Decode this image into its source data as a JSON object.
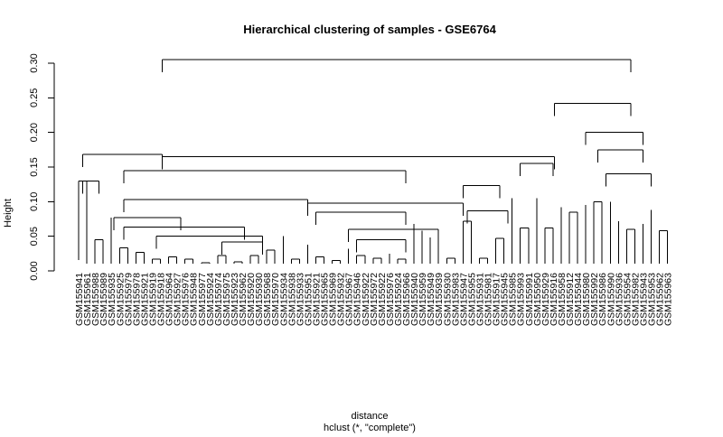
{
  "chart_data": {
    "type": "dendrogram",
    "title": "Hierarchical clustering of samples - GSE6764",
    "ylabel": "Height",
    "xlabel": "distance",
    "sublabel": "hclust (*, \"complete\")",
    "ylim": [
      0,
      0.32
    ],
    "yticks": [
      "0.00",
      "0.05",
      "0.10",
      "0.15",
      "0.20",
      "0.25",
      "0.30"
    ],
    "ytick_values": [
      0,
      0.05,
      0.1,
      0.15,
      0.2,
      0.25,
      0.3
    ],
    "leaves": [
      {
        "label": "GSM155941",
        "height": 0.13
      },
      {
        "label": "GSM155961",
        "height": 0.13
      },
      {
        "label": "GSM155988",
        "height": 0.045
      },
      {
        "label": "GSM155989",
        "height": 0.045
      },
      {
        "label": "GSM155935",
        "height": 0.077
      },
      {
        "label": "GSM155925",
        "height": 0.033
      },
      {
        "label": "GSM155979",
        "height": 0.033
      },
      {
        "label": "GSM155978",
        "height": 0.027
      },
      {
        "label": "GSM155921",
        "height": 0.027
      },
      {
        "label": "GSM155919",
        "height": 0.017
      },
      {
        "label": "GSM155918",
        "height": 0.017
      },
      {
        "label": "GSM155964",
        "height": 0.02
      },
      {
        "label": "GSM155927",
        "height": 0.02
      },
      {
        "label": "GSM155976",
        "height": 0.017
      },
      {
        "label": "GSM155948",
        "height": 0.017
      },
      {
        "label": "GSM155977",
        "height": 0.012
      },
      {
        "label": "GSM155924",
        "height": 0.012
      },
      {
        "label": "GSM155974",
        "height": 0.022
      },
      {
        "label": "GSM155975",
        "height": 0.022
      },
      {
        "label": "GSM155923",
        "height": 0.013
      },
      {
        "label": "GSM155962",
        "height": 0.013
      },
      {
        "label": "GSM155920",
        "height": 0.022
      },
      {
        "label": "GSM155930",
        "height": 0.022
      },
      {
        "label": "GSM155968",
        "height": 0.03
      },
      {
        "label": "GSM155970",
        "height": 0.03
      },
      {
        "label": "GSM155934",
        "height": 0.05
      },
      {
        "label": "GSM155938",
        "height": 0.017
      },
      {
        "label": "GSM155933",
        "height": 0.017
      },
      {
        "label": "GSM155951",
        "height": 0.038
      },
      {
        "label": "GSM155921",
        "height": 0.02
      },
      {
        "label": "GSM155965",
        "height": 0.02
      },
      {
        "label": "GSM155969",
        "height": 0.015
      },
      {
        "label": "GSM155932",
        "height": 0.015
      },
      {
        "label": "GSM155967",
        "height": 0.032
      },
      {
        "label": "GSM155946",
        "height": 0.022
      },
      {
        "label": "GSM155922",
        "height": 0.022
      },
      {
        "label": "GSM155972",
        "height": 0.018
      },
      {
        "label": "GSM155922",
        "height": 0.018
      },
      {
        "label": "GSM155976",
        "height": 0.025
      },
      {
        "label": "GSM155924",
        "height": 0.017
      },
      {
        "label": "GSM155966",
        "height": 0.017
      },
      {
        "label": "GSM155940",
        "height": 0.068
      },
      {
        "label": "GSM155959",
        "height": 0.058
      },
      {
        "label": "GSM155949",
        "height": 0.048
      },
      {
        "label": "GSM155939",
        "height": 0.042
      },
      {
        "label": "GSM155930",
        "height": 0.018
      },
      {
        "label": "GSM155983",
        "height": 0.018
      },
      {
        "label": "GSM155947",
        "height": 0.072
      },
      {
        "label": "GSM155955",
        "height": 0.072
      },
      {
        "label": "GSM155931",
        "height": 0.018
      },
      {
        "label": "GSM155981",
        "height": 0.018
      },
      {
        "label": "GSM155917",
        "height": 0.047
      },
      {
        "label": "GSM155945",
        "height": 0.047
      },
      {
        "label": "GSM155985",
        "height": 0.105
      },
      {
        "label": "GSM155993",
        "height": 0.062
      },
      {
        "label": "GSM155991",
        "height": 0.062
      },
      {
        "label": "GSM155950",
        "height": 0.105
      },
      {
        "label": "GSM155929",
        "height": 0.062
      },
      {
        "label": "GSM155916",
        "height": 0.062
      },
      {
        "label": "GSM155958",
        "height": 0.092
      },
      {
        "label": "GSM155912",
        "height": 0.085
      },
      {
        "label": "GSM155944",
        "height": 0.085
      },
      {
        "label": "GSM155980",
        "height": 0.095
      },
      {
        "label": "GSM155992",
        "height": 0.1
      },
      {
        "label": "GSM155986",
        "height": 0.1
      },
      {
        "label": "GSM155990",
        "height": 0.1
      },
      {
        "label": "GSM155936",
        "height": 0.072
      },
      {
        "label": "GSM155954",
        "height": 0.06
      },
      {
        "label": "GSM155982",
        "height": 0.06
      },
      {
        "label": "GSM155943",
        "height": 0.068
      },
      {
        "label": "GSM155953",
        "height": 0.088
      },
      {
        "label": "GSM155962",
        "height": 0.058
      },
      {
        "label": "GSM155963",
        "height": 0.058
      }
    ],
    "merges": [
      {
        "a": [
          0,
          1
        ],
        "h": 0.13
      },
      {
        "a": [
          2,
          3
        ],
        "h": 0.045
      },
      {
        "a": [
          7,
          8
        ],
        "h": 0.027
      },
      {
        "a": [
          5,
          6
        ],
        "h": 0.033
      },
      {
        "a": [
          9,
          10
        ],
        "h": 0.017
      },
      {
        "a": [
          11,
          12
        ],
        "h": 0.02
      },
      {
        "a": [
          13,
          14
        ],
        "h": 0.017
      },
      {
        "a": [
          15,
          16
        ],
        "h": 0.012
      },
      {
        "a": [
          17,
          18
        ],
        "h": 0.022
      },
      {
        "a": [
          19,
          20
        ],
        "h": 0.013
      },
      {
        "a": [
          21,
          22
        ],
        "h": 0.022
      },
      {
        "a": [
          23,
          24
        ],
        "h": 0.03
      },
      {
        "a": [
          26,
          27
        ],
        "h": 0.017
      },
      {
        "a": [
          29,
          30
        ],
        "h": 0.02
      },
      {
        "a": [
          31,
          32
        ],
        "h": 0.015
      },
      {
        "a": [
          34,
          35
        ],
        "h": 0.022
      },
      {
        "a": [
          36,
          37
        ],
        "h": 0.018
      },
      {
        "a": [
          39,
          40
        ],
        "h": 0.017
      },
      {
        "a": [
          45,
          46
        ],
        "h": 0.018
      },
      {
        "a": [
          47,
          48
        ],
        "h": 0.072
      },
      {
        "a": [
          49,
          50
        ],
        "h": 0.018
      },
      {
        "a": [
          51,
          52
        ],
        "h": 0.047
      },
      {
        "a": [
          54,
          55
        ],
        "h": 0.062
      },
      {
        "a": [
          57,
          58
        ],
        "h": 0.062
      },
      {
        "a": [
          60,
          61
        ],
        "h": 0.085
      },
      {
        "a": [
          63,
          64
        ],
        "h": 0.1
      },
      {
        "a": [
          67,
          68
        ],
        "h": 0.06
      },
      {
        "a": [
          71,
          72
        ],
        "h": 0.058
      }
    ],
    "tree": [
      {
        "l": 0.5,
        "r": 10.2,
        "h": 0.168
      },
      {
        "l": 0.5,
        "r": 2.5,
        "h": 0.13
      },
      {
        "l": 10.2,
        "r": 58.2,
        "h": 0.165
      },
      {
        "l": 5.5,
        "r": 40,
        "h": 0.145
      },
      {
        "l": 10.2,
        "r": 67.5,
        "h": 0.305
      },
      {
        "l": 5.5,
        "r": 28,
        "h": 0.103
      },
      {
        "l": 4.3,
        "r": 12.5,
        "h": 0.077
      },
      {
        "l": 5.5,
        "r": 20.3,
        "h": 0.063
      },
      {
        "l": 9.5,
        "r": 22.5,
        "h": 0.05
      },
      {
        "l": 17.5,
        "r": 22.5,
        "h": 0.042
      },
      {
        "l": 28,
        "r": 47,
        "h": 0.098
      },
      {
        "l": 29,
        "r": 40,
        "h": 0.085
      },
      {
        "l": 33,
        "r": 44,
        "h": 0.06
      },
      {
        "l": 34,
        "r": 40,
        "h": 0.045
      },
      {
        "l": 47,
        "r": 51.5,
        "h": 0.123
      },
      {
        "l": 47.5,
        "r": 52.5,
        "h": 0.087
      },
      {
        "l": 58.2,
        "r": 67.5,
        "h": 0.242
      },
      {
        "l": 54,
        "r": 58,
        "h": 0.155
      },
      {
        "l": 62,
        "r": 69,
        "h": 0.2
      },
      {
        "l": 63.5,
        "r": 69,
        "h": 0.175
      },
      {
        "l": 64.5,
        "r": 70,
        "h": 0.14
      }
    ]
  }
}
